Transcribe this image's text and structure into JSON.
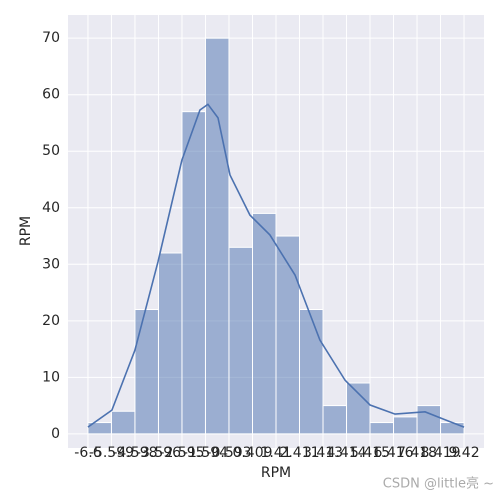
{
  "chart_data": {
    "type": "histogram",
    "xlabel": "RPM",
    "ylabel": "RPM",
    "bins": [
      -6.6,
      -5.599,
      -4.598,
      -3.596,
      -2.595,
      -1.594,
      -0.593,
      0.409,
      1.41,
      2.411,
      3.413,
      4.414,
      5.415,
      6.416,
      7.418,
      8.419,
      9.42
    ],
    "values": [
      2,
      4,
      22,
      32,
      57,
      70,
      33,
      39,
      35,
      22,
      5,
      9,
      2,
      3,
      5,
      2
    ],
    "color": "#4c72b0",
    "kde": {
      "x": [
        -6.6,
        -5.58,
        -4.6,
        -3.62,
        -2.6,
        -1.83,
        -1.49,
        -1.06,
        -0.55,
        0.3,
        1.15,
        2.22,
        3.28,
        4.35,
        5.42,
        6.48,
        7.76,
        8.61,
        9.42
      ],
      "values": [
        1.2,
        4.2,
        14.8,
        30.4,
        48.4,
        57.3,
        58.3,
        55.9,
        45.8,
        38.7,
        35.2,
        28.1,
        16.6,
        9.5,
        5.1,
        3.5,
        3.9,
        2.5,
        1.2
      ]
    },
    "xlim": [
      -7.45,
      10.27
    ],
    "ylim": [
      -2.5,
      74.1
    ],
    "xticks": [
      -6.6,
      -5.599,
      -4.598,
      -3.596,
      -2.595,
      -1.594,
      -0.593,
      0.409,
      1.41,
      2.411,
      3.413,
      4.414,
      5.415,
      6.416,
      7.418,
      8.419,
      9.42
    ],
    "yticks": [
      0,
      10,
      20,
      30,
      40,
      50,
      60,
      70
    ],
    "grid": true,
    "watermark": "CSDN @little亮 ~"
  }
}
